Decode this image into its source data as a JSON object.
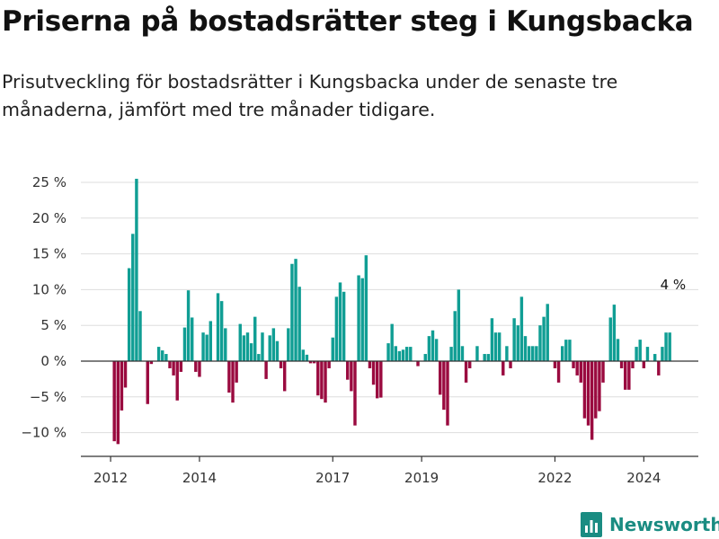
{
  "title": "Priserna på bostadsrätter steg i Kungsbacka",
  "subtitle": "Prisutveckling för bostadsrätter i Kungsbacka under de senaste tre månaderna, jämfört med tre månader tidigare.",
  "brand": {
    "name": "Newsworthy",
    "icon": "bar-chart-logo-icon"
  },
  "colors": {
    "positive": "#109e94",
    "negative": "#9a0a3f",
    "grid": "#dddddd",
    "axis": "#333333",
    "brand": "#1a8c82"
  },
  "chart_data": {
    "type": "bar",
    "x": [
      "2012-01",
      "2012-02",
      "2012-03",
      "2012-04",
      "2012-05",
      "2012-06",
      "2012-07",
      "2012-08",
      "2012-09",
      "2012-10",
      "2012-11",
      "2012-12",
      "2013-01",
      "2013-02",
      "2013-03",
      "2013-04",
      "2013-05",
      "2013-06",
      "2013-07",
      "2013-08",
      "2013-09",
      "2013-10",
      "2013-11",
      "2013-12",
      "2014-01",
      "2014-02",
      "2014-03",
      "2014-04",
      "2014-05",
      "2014-06",
      "2014-07",
      "2014-08",
      "2014-09",
      "2014-10",
      "2014-11",
      "2014-12",
      "2015-01",
      "2015-02",
      "2015-03",
      "2015-04",
      "2015-05",
      "2015-06",
      "2015-07",
      "2015-08",
      "2015-09",
      "2015-10",
      "2015-11",
      "2015-12",
      "2016-01",
      "2016-02",
      "2016-03",
      "2016-04",
      "2016-05",
      "2016-06",
      "2016-07",
      "2016-08",
      "2016-09",
      "2016-10",
      "2016-11",
      "2016-12",
      "2017-01",
      "2017-02",
      "2017-03",
      "2017-04",
      "2017-05",
      "2017-06",
      "2017-07",
      "2017-08",
      "2017-09",
      "2017-10",
      "2017-11",
      "2017-12",
      "2018-01",
      "2018-02",
      "2018-03",
      "2018-04",
      "2018-05",
      "2018-06",
      "2018-07",
      "2018-08",
      "2018-09",
      "2018-10",
      "2018-11",
      "2018-12",
      "2019-01",
      "2019-02",
      "2019-03",
      "2019-04",
      "2019-05",
      "2019-06",
      "2019-07",
      "2019-08",
      "2019-09",
      "2019-10",
      "2019-11",
      "2019-12",
      "2020-01",
      "2020-02",
      "2020-03",
      "2020-04",
      "2020-05",
      "2020-06",
      "2020-07",
      "2020-08",
      "2020-09",
      "2020-10",
      "2020-11",
      "2020-12",
      "2021-01",
      "2021-02",
      "2021-03",
      "2021-04",
      "2021-05",
      "2021-06",
      "2021-07",
      "2021-08",
      "2021-09",
      "2021-10",
      "2021-11",
      "2021-12",
      "2022-01",
      "2022-02",
      "2022-03",
      "2022-04",
      "2022-05",
      "2022-06",
      "2022-07",
      "2022-08",
      "2022-09",
      "2022-10",
      "2022-11",
      "2022-12",
      "2023-01",
      "2023-02",
      "2023-03",
      "2023-04",
      "2023-05",
      "2023-06",
      "2023-07",
      "2023-08",
      "2023-09",
      "2023-10",
      "2023-11",
      "2023-12",
      "2024-01",
      "2024-02",
      "2024-03",
      "2024-04",
      "2024-05",
      "2024-06",
      "2024-07",
      "2024-08"
    ],
    "values": [
      0,
      -11.2,
      -11.6,
      -6.9,
      -3.7,
      13,
      17.8,
      25.5,
      7,
      0,
      -6,
      -0.4,
      0,
      2,
      1.5,
      1,
      -1,
      -2,
      -5.5,
      -1.5,
      4.7,
      9.9,
      6.1,
      -1.5,
      -2.2,
      4,
      3.7,
      5.6,
      0,
      9.5,
      8.4,
      4.6,
      -4.4,
      -5.8,
      -3,
      5.2,
      3.6,
      4,
      2.5,
      6.2,
      1,
      4,
      -2.5,
      3.6,
      4.6,
      2.8,
      -1,
      -4.2,
      4.6,
      13.6,
      14.3,
      10.4,
      1.6,
      0.9,
      -0.3,
      -0.3,
      -4.8,
      -5.3,
      -5.8,
      -1,
      3.3,
      9,
      11,
      9.7,
      -2.6,
      -4.2,
      -9,
      12,
      11.6,
      14.8,
      -1,
      -3.3,
      -5.2,
      -5.1,
      0,
      2.5,
      5.2,
      2.1,
      1.4,
      1.6,
      2,
      2,
      0,
      -0.7,
      0,
      1,
      3.5,
      4.3,
      3.1,
      -4.7,
      -6.8,
      -9,
      2,
      7,
      10,
      2.1,
      -3,
      -1,
      0,
      2.1,
      0,
      1,
      1,
      6,
      4,
      4,
      -2,
      2.1,
      -1,
      6,
      5,
      9,
      3.5,
      2.1,
      2.1,
      2.1,
      5,
      6.2,
      8,
      0,
      -1,
      -3,
      2.1,
      3,
      3,
      -1,
      -2,
      -3,
      -8,
      -9,
      -11,
      -8,
      -7,
      -3,
      0,
      6.1,
      7.9,
      3.1,
      -1,
      -4,
      -4,
      -1,
      2,
      3,
      -1,
      2,
      0,
      1,
      -2,
      2,
      4,
      4
    ],
    "yticks": [
      -10,
      -5,
      0,
      5,
      10,
      15,
      20,
      25
    ],
    "ytick_labels": [
      "−10 %",
      "−5 %",
      "0 %",
      "5 %",
      "10 %",
      "15 %",
      "20 %",
      "25 %"
    ],
    "xticks": [
      "2012-01",
      "2014-01",
      "2017-01",
      "2019-01",
      "2022-01",
      "2024-01"
    ],
    "xtick_labels": [
      "2012",
      "2014",
      "2017",
      "2019",
      "2022",
      "2024"
    ],
    "ylim": [
      -13.5,
      26.5
    ],
    "grid": true,
    "annotation": {
      "text": "4 %",
      "x": "2024-08",
      "y": 4
    },
    "xlabel": "",
    "ylabel": ""
  }
}
